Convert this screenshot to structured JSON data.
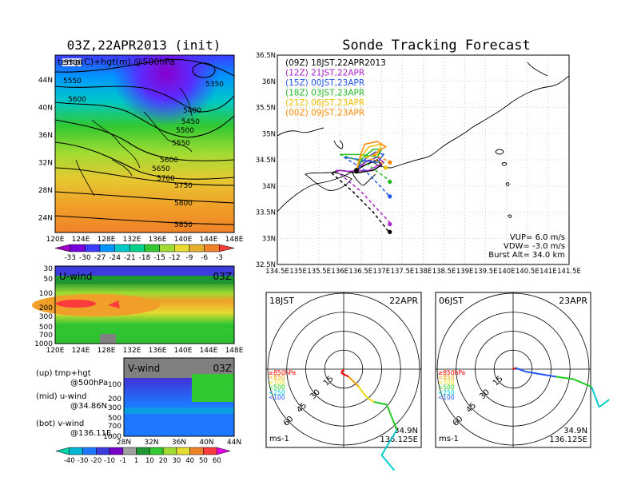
{
  "left_title": "03Z,22APR2013 (init)",
  "right_title": "Sonde Tracking Forecast",
  "top_map": {
    "label": "temp(C)+hgt(m) @500hPa",
    "lon_ticks": [
      "120E",
      "124E",
      "128E",
      "132E",
      "136E",
      "140E",
      "144E",
      "148E"
    ],
    "lat_ticks": [
      "44N",
      "40N",
      "36N",
      "32N",
      "28N",
      "24N"
    ],
    "contour_labels": [
      "5500",
      "5550",
      "5600",
      "5350",
      "5400",
      "5450",
      "5500",
      "5550",
      "5600",
      "5650",
      "5700",
      "5750",
      "5800",
      "5850"
    ],
    "colorbar_ticks": [
      "-33",
      "-30",
      "-27",
      "-24",
      "-21",
      "-18",
      "-15",
      "-12",
      "-9",
      "-6",
      "-3"
    ],
    "colorbar_colors": [
      "#a000c8",
      "#7800dc",
      "#3c3cff",
      "#0096ff",
      "#00c8c8",
      "#00d28c",
      "#32c832",
      "#a0dc32",
      "#e6dc32",
      "#e6af2d",
      "#f08228",
      "#fa3c3c"
    ]
  },
  "u_wind": {
    "label": "U-wind",
    "time": "03Z",
    "p_ticks": [
      "30",
      "50",
      "100",
      "200",
      "300",
      "500",
      "700",
      "1000"
    ],
    "lon_ticks": [
      "120E",
      "124E",
      "128E",
      "132E",
      "136E",
      "140E",
      "144E",
      "148E"
    ]
  },
  "v_wind": {
    "label": "V-wind",
    "time": "03Z",
    "p_ticks": [
      "100",
      "200",
      "300",
      "500",
      "700",
      "1000"
    ],
    "lat_ticks": [
      "28N",
      "32N",
      "36N",
      "40N",
      "44N"
    ]
  },
  "legend_notes": [
    {
      "a": "(up) tmp+hgt",
      "b": "@500hPa"
    },
    {
      "a": "(mid) u-wind",
      "b": "@34.86N"
    },
    {
      "a": "(bot) v-wind",
      "b": "@136.11E"
    }
  ],
  "wind_colorbar": {
    "ticks": [
      "-40",
      "-30",
      "-20",
      "-10",
      "-1",
      "1",
      "10",
      "20",
      "30",
      "40",
      "50",
      "60"
    ],
    "colors": [
      "#00d2aa",
      "#00b4d2",
      "#1e78ff",
      "#3c3cdc",
      "#7800c8",
      "#a0a0a0",
      "#1e9632",
      "#32c832",
      "#a0dc32",
      "#e6dc32",
      "#f08228",
      "#fa3c3c",
      "#e600e6"
    ]
  },
  "chart_data": {
    "type": "line",
    "title": "Sonde Tracking Forecast",
    "x_ticks": [
      "134.5E",
      "135E",
      "135.5E",
      "136E",
      "136.5E",
      "137E",
      "137.5E",
      "138E",
      "138.5E",
      "139E",
      "139.5E",
      "140E",
      "140.5E",
      "141E",
      "141.5E"
    ],
    "y_ticks": [
      "36.5N",
      "36N",
      "35.5N",
      "35N",
      "34.5N",
      "34N",
      "33.5N",
      "33N",
      "32.5N"
    ],
    "xlim": [
      134.5,
      141.5
    ],
    "ylim": [
      32.5,
      36.5
    ],
    "launch_point": {
      "lon": 136.4,
      "lat": 34.3
    },
    "series": [
      {
        "name": "(09Z)  18JST,22APR2013",
        "color": "#000000",
        "ascent": [
          [
            136.4,
            34.3
          ],
          [
            136.6,
            34.4
          ],
          [
            136.9,
            34.5
          ],
          [
            137.0,
            34.4
          ],
          [
            136.8,
            34.3
          ],
          [
            136.4,
            34.25
          ],
          [
            136.0,
            34.3
          ],
          [
            135.8,
            34.25
          ]
        ],
        "descent": [
          [
            135.8,
            34.25
          ],
          [
            136.3,
            33.9
          ],
          [
            136.8,
            33.5
          ],
          [
            137.2,
            33.1
          ]
        ],
        "end": {
          "lon": 137.2,
          "lat": 33.12
        }
      },
      {
        "name": "(12Z)  21JST,22APR",
        "color": "#aa22cc",
        "ascent": [
          [
            136.4,
            34.3
          ],
          [
            136.6,
            34.45
          ],
          [
            136.9,
            34.55
          ],
          [
            137.05,
            34.45
          ],
          [
            136.7,
            34.3
          ],
          [
            136.2,
            34.28
          ],
          [
            135.9,
            34.3
          ]
        ],
        "descent": [
          [
            135.9,
            34.3
          ],
          [
            136.5,
            33.9
          ],
          [
            137.2,
            33.3
          ]
        ],
        "end": {
          "lon": 137.2,
          "lat": 33.27
        }
      },
      {
        "name": "(15Z)  00JST,23APR",
        "color": "#2255ee",
        "ascent": [
          [
            136.4,
            34.3
          ],
          [
            136.5,
            34.45
          ],
          [
            136.85,
            34.65
          ],
          [
            137.05,
            34.6
          ],
          [
            136.9,
            34.45
          ],
          [
            136.5,
            34.5
          ],
          [
            136.1,
            34.55
          ]
        ],
        "descent": [
          [
            136.1,
            34.55
          ],
          [
            136.6,
            34.3
          ],
          [
            137.2,
            33.8
          ]
        ],
        "end": {
          "lon": 137.2,
          "lat": 33.8
        }
      },
      {
        "name": "(18Z)  03JST,23APR",
        "color": "#22bb22",
        "ascent": [
          [
            136.4,
            34.3
          ],
          [
            136.5,
            34.5
          ],
          [
            136.8,
            34.7
          ],
          [
            137.0,
            34.7
          ],
          [
            136.9,
            34.55
          ],
          [
            136.5,
            34.6
          ],
          [
            136.0,
            34.6
          ]
        ],
        "descent": [
          [
            136.0,
            34.6
          ],
          [
            136.6,
            34.45
          ],
          [
            137.2,
            34.1
          ]
        ],
        "end": {
          "lon": 137.2,
          "lat": 34.08
        }
      },
      {
        "name": "(21Z)  06JST,23APR",
        "color": "#f0c000",
        "ascent": [
          [
            136.4,
            34.3
          ],
          [
            136.5,
            34.55
          ],
          [
            136.7,
            34.75
          ],
          [
            137.0,
            34.8
          ],
          [
            136.9,
            34.6
          ],
          [
            136.6,
            34.55
          ]
        ],
        "descent": [
          [
            136.6,
            34.55
          ],
          [
            137.0,
            34.45
          ],
          [
            137.1,
            34.35
          ]
        ],
        "end": {
          "lon": 137.1,
          "lat": 34.35
        }
      },
      {
        "name": "(00Z)  09JST,23APR",
        "color": "#ff8800",
        "ascent": [
          [
            136.4,
            34.3
          ],
          [
            136.5,
            34.6
          ],
          [
            136.6,
            34.8
          ],
          [
            136.9,
            34.85
          ],
          [
            137.1,
            34.75
          ],
          [
            136.8,
            34.6
          ]
        ],
        "descent": [
          [
            136.8,
            34.6
          ],
          [
            137.1,
            34.5
          ],
          [
            137.2,
            34.45
          ]
        ],
        "end": {
          "lon": 137.2,
          "lat": 34.45
        }
      }
    ],
    "info": [
      "VUP= 6.0 m/s",
      "VDW= -3.0 m/s",
      "Burst Alt= 34.0 km"
    ]
  },
  "hodographs": [
    {
      "time_left": "18JST",
      "time_right": "22APR",
      "ring_labels": [
        "15",
        "30",
        "45",
        "60"
      ],
      "unit": "ms-1",
      "loc_lat": "34.9N",
      "loc_lon": "136.125E",
      "levels": [
        {
          "label": "≥850hPa",
          "color": "#ff0000"
        },
        {
          "label": "<850",
          "color": "#f0a000"
        },
        {
          "label": "<700",
          "color": "#e6dc00"
        },
        {
          "label": "<500",
          "color": "#22cc22"
        },
        {
          "label": "<250",
          "color": "#00cccc"
        },
        {
          "label": "<100",
          "color": "#2255ff"
        }
      ],
      "track": [
        [
          0,
          0
        ],
        [
          -2,
          -3
        ],
        [
          4,
          -6
        ],
        [
          12,
          -14
        ],
        [
          18,
          -22
        ],
        [
          24,
          -26
        ],
        [
          34,
          -28
        ],
        [
          42,
          -48
        ],
        [
          30,
          -68
        ],
        [
          40,
          -80
        ]
      ]
    },
    {
      "time_left": "06JST",
      "time_right": "23APR",
      "ring_labels": [
        "15",
        "30",
        "45",
        "60"
      ],
      "unit": "ms-1",
      "loc_lat": "34.9N",
      "loc_lon": "136.125E",
      "levels": [
        {
          "label": "≥850hPa",
          "color": "#ff0000"
        },
        {
          "label": "<850",
          "color": "#f0a000"
        },
        {
          "label": "<700",
          "color": "#e6dc00"
        },
        {
          "label": "<500",
          "color": "#22cc22"
        },
        {
          "label": "<250",
          "color": "#00cccc"
        },
        {
          "label": "<100",
          "color": "#2255ff"
        }
      ],
      "track": [
        [
          0,
          0
        ],
        [
          2,
          1
        ],
        [
          10,
          -2
        ],
        [
          22,
          -4
        ],
        [
          34,
          -6
        ],
        [
          48,
          -8
        ],
        [
          62,
          -14
        ],
        [
          68,
          -30
        ],
        [
          76,
          -24
        ]
      ]
    }
  ]
}
